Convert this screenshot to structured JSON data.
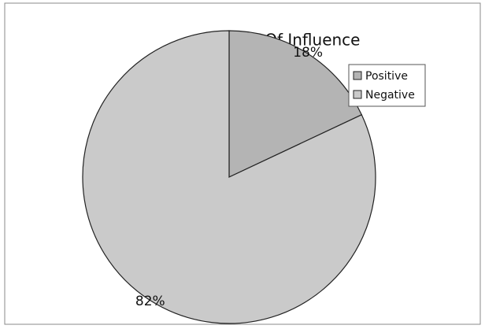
{
  "chart_data": {
    "type": "pie",
    "title": "Ratio Of Influence",
    "categories": [
      "Positive",
      "Negative"
    ],
    "values": [
      18,
      82
    ],
    "value_labels": [
      "18%",
      "82%"
    ],
    "colors": [
      "#b4b4b4",
      "#cacaca"
    ],
    "legend": "right"
  }
}
